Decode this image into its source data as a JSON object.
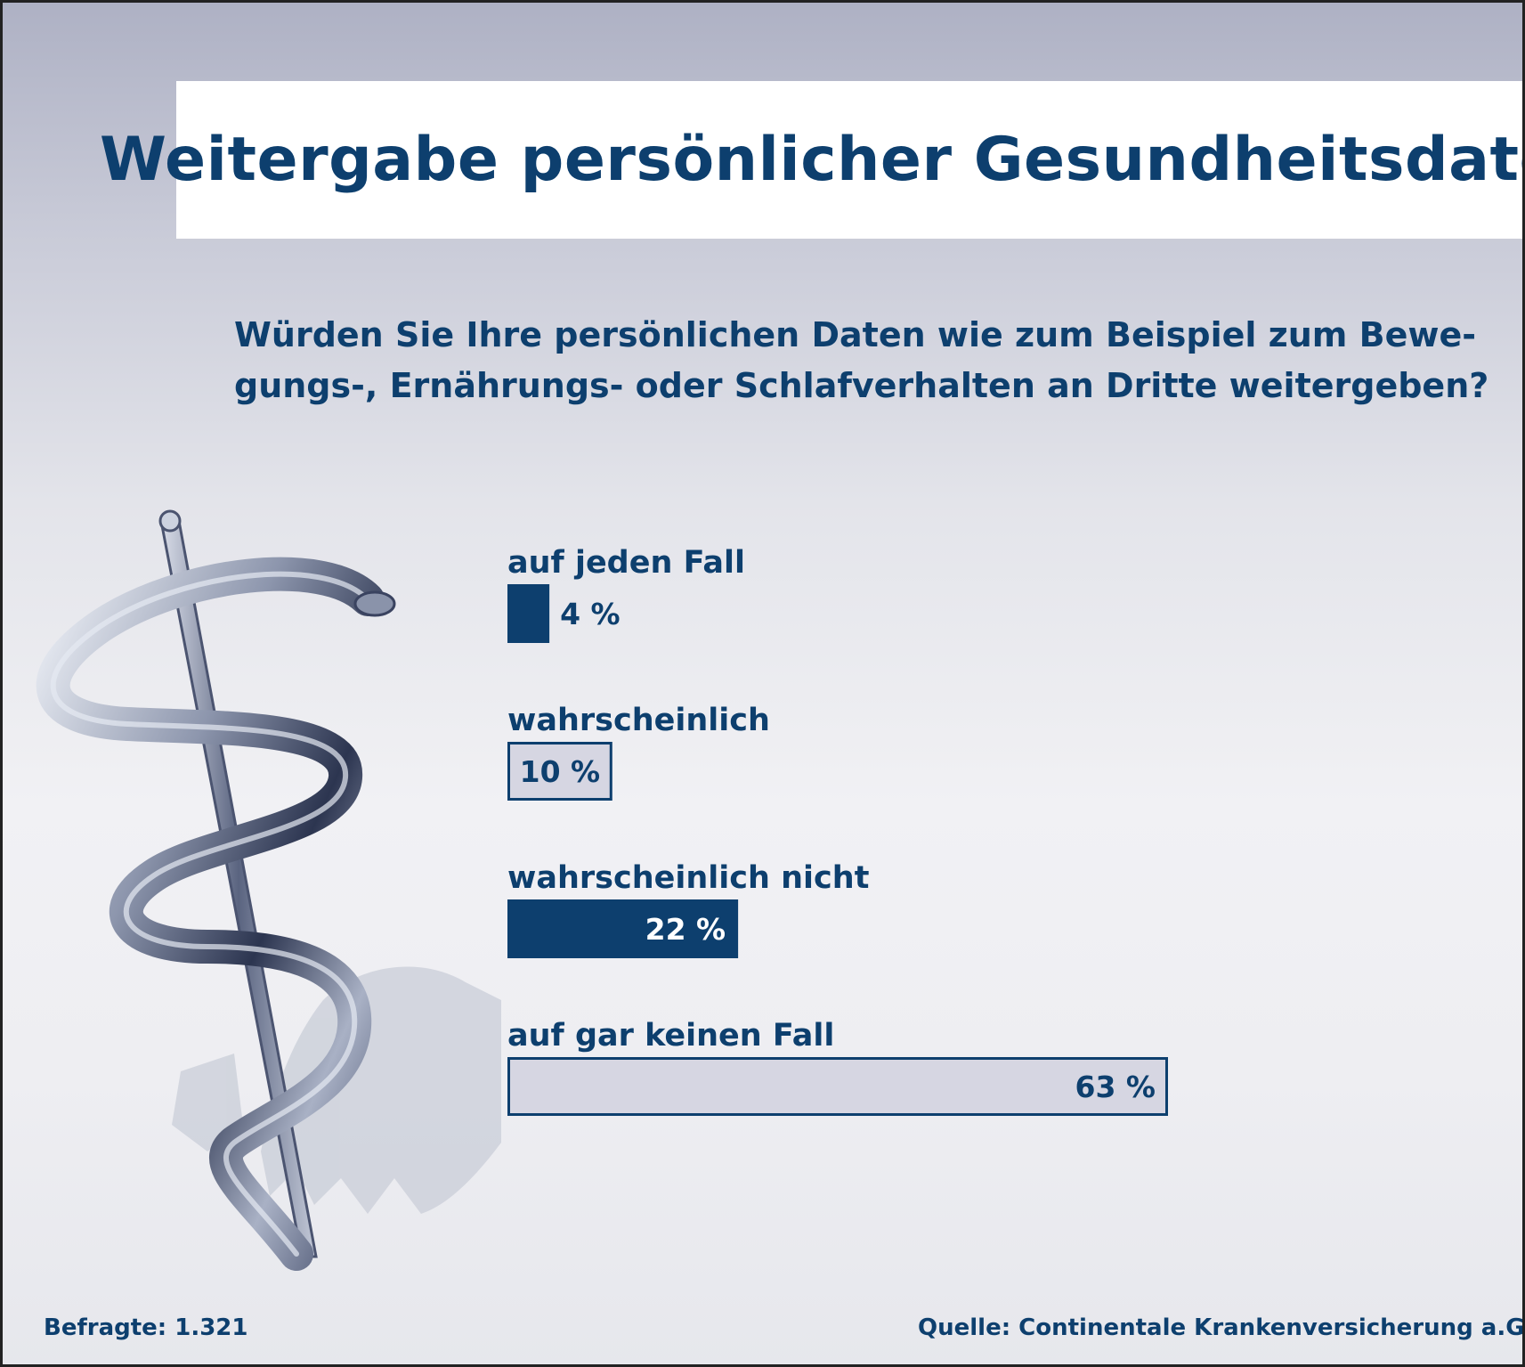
{
  "colors": {
    "dark_blue": "#0d3f6e",
    "light_fill": "#d6d6e2",
    "white": "#ffffff"
  },
  "icons": [
    "aesculapian-staff-icon",
    "federal-eagle-shadow-icon"
  ],
  "chart_data": {
    "type": "bar",
    "orientation": "horizontal",
    "title": "Weitergabe persönlicher Gesundheitsdaten",
    "subtitle_lines": [
      "Würden Sie Ihre persönlichen Daten wie zum Beispiel zum Bewe-",
      "gungs-, Ernährungs- oder Schlafverhalten an Dritte weitergeben?"
    ],
    "categories": [
      "auf jeden Fall",
      "wahrscheinlich",
      "wahrscheinlich nicht",
      "auf gar keinen Fall"
    ],
    "values": [
      4,
      10,
      22,
      63
    ],
    "value_labels": [
      "4 %",
      "10 %",
      "22 %",
      "63 %"
    ],
    "bar_styles": [
      "filled-dark",
      "outlined-light",
      "filled-dark",
      "outlined-light"
    ],
    "unit": "%",
    "xlim": [
      0,
      63
    ],
    "grid": false,
    "legend": "none"
  },
  "footer": {
    "respondents": "Befragte: 1.321",
    "source": "Quelle: Continentale Krankenversicherung a.G."
  }
}
